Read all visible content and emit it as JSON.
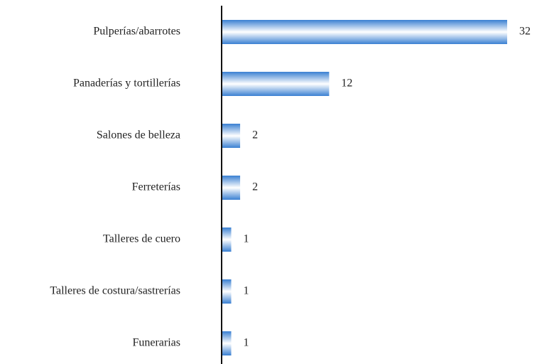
{
  "chart_data": {
    "type": "bar",
    "orientation": "horizontal",
    "categories": [
      "Pulperías/abarrotes",
      "Panaderías y tortillerías",
      "Salones de belleza",
      "Ferreterías",
      "Talleres de cuero",
      "Talleres de costura/sastrerías",
      "Funerarias"
    ],
    "values": [
      32,
      12,
      2,
      2,
      1,
      1,
      1
    ],
    "color": "#3a80d2"
  }
}
